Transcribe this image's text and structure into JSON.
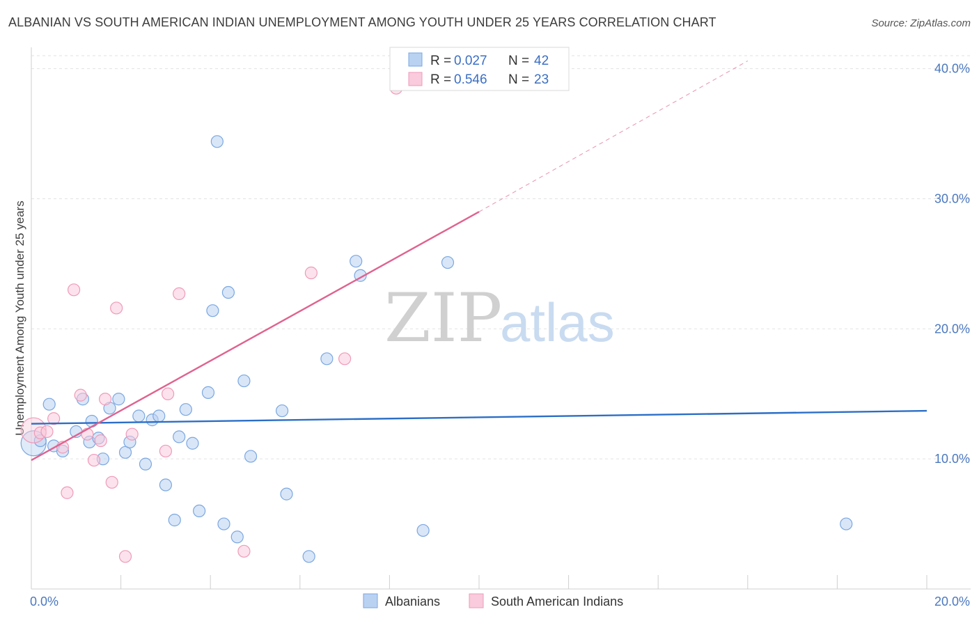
{
  "title": "ALBANIAN VS SOUTH AMERICAN INDIAN UNEMPLOYMENT AMONG YOUTH UNDER 25 YEARS CORRELATION CHART",
  "source": "Source: ZipAtlas.com",
  "watermark": {
    "part1": "ZIP",
    "part2": "atlas"
  },
  "chart_data": {
    "type": "scatter",
    "xlabel": "",
    "ylabel": "Unemployment Among Youth under 25 years",
    "xlim": [
      0,
      20
    ],
    "ylim": [
      0,
      41
    ],
    "x_ticks": [
      {
        "value": 0,
        "label": "0.0%"
      },
      {
        "value": 20,
        "label": "20.0%"
      }
    ],
    "x_minor_ticks": [
      0,
      2,
      4,
      6,
      8,
      10,
      12,
      14,
      16,
      18,
      20
    ],
    "y_ticks": [
      {
        "value": 10,
        "label": "10.0%"
      },
      {
        "value": 20,
        "label": "20.0%"
      },
      {
        "value": 30,
        "label": "30.0%"
      },
      {
        "value": 40,
        "label": "40.0%"
      }
    ],
    "grid": true,
    "legend": {
      "position": "top-center",
      "entries": [
        {
          "series": "Albanians",
          "r_label": "R =",
          "r_value": "0.027",
          "n_label": "N =",
          "n_value": "42"
        },
        {
          "series": "South American Indians",
          "r_label": "R =",
          "r_value": "0.546",
          "n_label": "N =",
          "n_value": "23"
        }
      ]
    },
    "series": [
      {
        "name": "Albanians",
        "color": "#7aa7e0",
        "fill": "#b9d2f2",
        "trend_color": "#2b6ec6",
        "trend": {
          "x0": 0,
          "y0": 12.7,
          "x1": 20,
          "y1": 13.7
        },
        "points": [
          {
            "x": 0.05,
            "y": 11.2,
            "big": true
          },
          {
            "x": 0.2,
            "y": 11.4
          },
          {
            "x": 0.4,
            "y": 14.2
          },
          {
            "x": 0.5,
            "y": 11.0
          },
          {
            "x": 0.7,
            "y": 10.6
          },
          {
            "x": 1.0,
            "y": 12.1
          },
          {
            "x": 1.15,
            "y": 14.6
          },
          {
            "x": 1.3,
            "y": 11.3
          },
          {
            "x": 1.35,
            "y": 12.9
          },
          {
            "x": 1.5,
            "y": 11.6
          },
          {
            "x": 1.6,
            "y": 10.0
          },
          {
            "x": 1.75,
            "y": 13.9
          },
          {
            "x": 1.95,
            "y": 14.6
          },
          {
            "x": 2.1,
            "y": 10.5
          },
          {
            "x": 2.2,
            "y": 11.3
          },
          {
            "x": 2.4,
            "y": 13.3
          },
          {
            "x": 2.55,
            "y": 9.6
          },
          {
            "x": 2.7,
            "y": 13.0
          },
          {
            "x": 2.85,
            "y": 13.3
          },
          {
            "x": 3.0,
            "y": 8.0
          },
          {
            "x": 3.2,
            "y": 5.3
          },
          {
            "x": 3.3,
            "y": 11.7
          },
          {
            "x": 3.45,
            "y": 13.8
          },
          {
            "x": 3.6,
            "y": 11.2
          },
          {
            "x": 3.75,
            "y": 6.0
          },
          {
            "x": 3.95,
            "y": 15.1
          },
          {
            "x": 4.05,
            "y": 21.4
          },
          {
            "x": 4.15,
            "y": 34.4
          },
          {
            "x": 4.3,
            "y": 5.0
          },
          {
            "x": 4.4,
            "y": 22.8
          },
          {
            "x": 4.6,
            "y": 4.0
          },
          {
            "x": 4.75,
            "y": 16.0
          },
          {
            "x": 4.9,
            "y": 10.2
          },
          {
            "x": 5.6,
            "y": 13.7
          },
          {
            "x": 5.7,
            "y": 7.3
          },
          {
            "x": 6.2,
            "y": 2.5
          },
          {
            "x": 6.6,
            "y": 17.7
          },
          {
            "x": 7.25,
            "y": 25.2
          },
          {
            "x": 7.35,
            "y": 24.1
          },
          {
            "x": 8.75,
            "y": 4.5
          },
          {
            "x": 9.3,
            "y": 25.1
          },
          {
            "x": 18.2,
            "y": 5.0
          }
        ]
      },
      {
        "name": "South American Indians",
        "color": "#ef9ab8",
        "fill": "#f9cbdc",
        "trend_color": "#e0628f",
        "trend": {
          "x0": 0,
          "y0": 9.9,
          "x1": 10,
          "y1": 29.0
        },
        "trend_ext": {
          "x0": 10,
          "y0": 29.0,
          "x1": 16.0,
          "y1": 40.6
        },
        "points": [
          {
            "x": 0.05,
            "y": 12.2,
            "big": true
          },
          {
            "x": 0.2,
            "y": 12.0
          },
          {
            "x": 0.35,
            "y": 12.1
          },
          {
            "x": 0.5,
            "y": 13.1
          },
          {
            "x": 0.7,
            "y": 10.9
          },
          {
            "x": 0.8,
            "y": 7.4
          },
          {
            "x": 0.95,
            "y": 23.0
          },
          {
            "x": 1.1,
            "y": 14.9
          },
          {
            "x": 1.25,
            "y": 11.9
          },
          {
            "x": 1.4,
            "y": 9.9
          },
          {
            "x": 1.55,
            "y": 11.4
          },
          {
            "x": 1.65,
            "y": 14.6
          },
          {
            "x": 1.8,
            "y": 8.2
          },
          {
            "x": 1.9,
            "y": 21.6
          },
          {
            "x": 2.1,
            "y": 2.5
          },
          {
            "x": 2.25,
            "y": 11.9
          },
          {
            "x": 3.0,
            "y": 10.6
          },
          {
            "x": 3.05,
            "y": 15.0
          },
          {
            "x": 3.3,
            "y": 22.7
          },
          {
            "x": 4.75,
            "y": 2.9
          },
          {
            "x": 6.25,
            "y": 24.3
          },
          {
            "x": 7.0,
            "y": 17.7
          },
          {
            "x": 8.15,
            "y": 38.5
          }
        ]
      }
    ]
  }
}
